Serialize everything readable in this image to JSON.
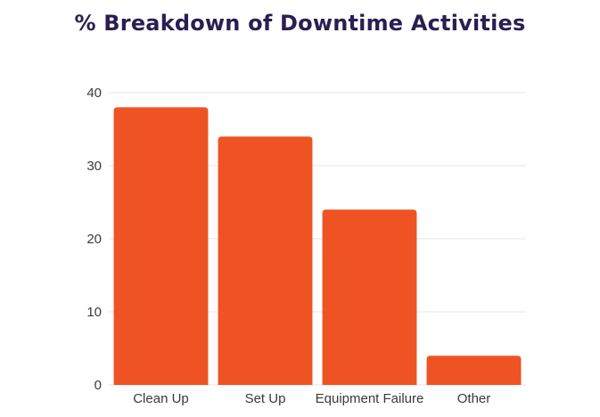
{
  "chart_data": {
    "type": "bar",
    "title": "% Breakdown of Downtime Activities",
    "categories": [
      "Clean Up",
      "Set Up",
      "Equipment Failure",
      "Other"
    ],
    "values": [
      38,
      34,
      24,
      4
    ],
    "ylim": [
      0,
      40
    ],
    "yticks": [
      "0",
      "10",
      "20",
      "30",
      "40"
    ],
    "xlabel": "",
    "ylabel": "",
    "grid": true,
    "legend": "none",
    "bar_color": "#ef5323",
    "grid_color": "#e6e6e6"
  }
}
